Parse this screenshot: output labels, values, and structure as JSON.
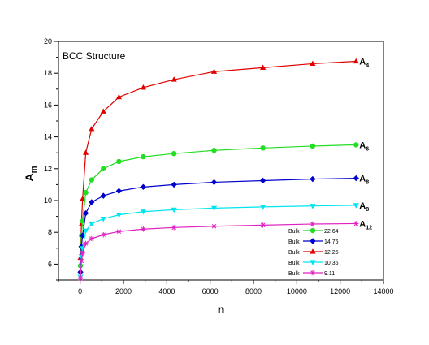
{
  "chart_data": {
    "type": "line",
    "annotation": "BCC Structure",
    "xlabel": "n",
    "ylabel": "A",
    "ylabel_sub": "m",
    "xlim": [
      -1000,
      14000
    ],
    "ylim": [
      5,
      20
    ],
    "xticks": [
      0,
      2000,
      4000,
      6000,
      8000,
      10000,
      12000,
      14000
    ],
    "yticks": [
      6,
      8,
      10,
      12,
      14,
      16,
      18,
      20
    ],
    "grid": false,
    "legend_position": "bottom-right",
    "series": [
      {
        "name": "A",
        "name_sub": "4",
        "color": "#e00000",
        "marker": "triangle-up",
        "legend_label": "Bulk",
        "legend_value": "12.25",
        "x": [
          14,
          59,
          113,
          259,
          531,
          1072,
          1791,
          2915,
          4331,
          6183,
          8435,
          10732,
          12735
        ],
        "y": [
          6.4,
          8.5,
          10.1,
          13.0,
          14.5,
          15.6,
          16.5,
          17.1,
          17.6,
          18.1,
          18.35,
          18.6,
          18.75
        ]
      },
      {
        "name": "A",
        "name_sub": "6",
        "color": "#22dd22",
        "marker": "circle",
        "legend_label": "Bulk",
        "legend_value": "22.64",
        "x": [
          14,
          59,
          113,
          259,
          531,
          1072,
          1791,
          2915,
          4331,
          6183,
          8435,
          10732,
          12735
        ],
        "y": [
          5.9,
          7.8,
          8.7,
          10.5,
          11.3,
          12.0,
          12.45,
          12.75,
          12.95,
          13.15,
          13.3,
          13.42,
          13.5
        ]
      },
      {
        "name": "A",
        "name_sub": "8",
        "color": "#0000cc",
        "marker": "diamond",
        "legend_label": "Bulk",
        "legend_value": "14.76",
        "x": [
          14,
          59,
          113,
          259,
          531,
          1072,
          1791,
          2915,
          4331,
          6183,
          8435,
          10732,
          12735
        ],
        "y": [
          5.5,
          7.1,
          7.8,
          9.2,
          9.9,
          10.3,
          10.6,
          10.85,
          11.0,
          11.15,
          11.25,
          11.35,
          11.4
        ]
      },
      {
        "name": "A",
        "name_sub": "8",
        "color": "#00e5ee",
        "marker": "triangle-down",
        "legend_label": "Bulk",
        "legend_value": "10.36",
        "x": [
          14,
          59,
          113,
          259,
          531,
          1072,
          1791,
          2915,
          4331,
          6183,
          8435,
          10732,
          12735
        ],
        "y": [
          5.2,
          6.5,
          7.0,
          8.1,
          8.55,
          8.85,
          9.1,
          9.3,
          9.42,
          9.52,
          9.6,
          9.66,
          9.7
        ]
      },
      {
        "name": "A",
        "name_sub": "12",
        "color": "#e020c0",
        "marker": "star",
        "legend_label": "Bulk",
        "legend_value": "9.11",
        "x": [
          14,
          59,
          113,
          259,
          531,
          1072,
          1791,
          2915,
          4331,
          6183,
          8435,
          10732,
          12735
        ],
        "y": [
          5.1,
          6.2,
          6.7,
          7.3,
          7.6,
          7.85,
          8.05,
          8.2,
          8.3,
          8.38,
          8.45,
          8.52,
          8.55
        ]
      }
    ],
    "legend_order": [
      1,
      2,
      0,
      3,
      4
    ]
  }
}
